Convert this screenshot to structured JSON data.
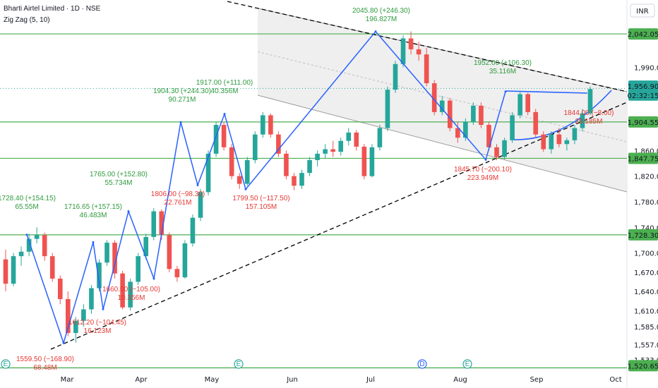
{
  "header": {
    "symbol_line": "Bharti Airtel Limited · 1D · NSE",
    "indicator_line": "Zig Zag (5, 10)",
    "currency": "INR"
  },
  "colors": {
    "up": "#26a69a",
    "down": "#ef5350",
    "zigzag": "#2962ff",
    "support": "#4caf50",
    "channel_fill": "#ececec",
    "trend": "#000000",
    "label_up": "#2e9a3e",
    "label_down": "#e53935"
  },
  "chart_data": {
    "type": "candlestick",
    "title": "Bharti Airtel Limited · 1D · NSE",
    "y_range": [
      1520,
      2095
    ],
    "y_ticks": [
      "1,990.00",
      "1,860.00",
      "1,820.00",
      "1,780.00",
      "1,740.00",
      "1,700.00",
      "1,670.00",
      "1,640.00",
      "1,610.00",
      "1,585.00",
      "1,557.00",
      "1,533.00"
    ],
    "x_ticks": [
      "Mar",
      "Apr",
      "May",
      "Jun",
      "Jul",
      "Aug",
      "Sep",
      "Oct"
    ],
    "price_badges": [
      {
        "value": "2,042.05",
        "type": "level"
      },
      {
        "value": "1,956.90",
        "type": "last"
      },
      {
        "value": "02:32:15",
        "type": "countdown"
      },
      {
        "value": "1,904.55",
        "type": "level"
      },
      {
        "value": "1,847.75",
        "type": "level"
      },
      {
        "value": "1,728.30",
        "type": "level"
      },
      {
        "value": "1,520.65",
        "type": "level"
      }
    ],
    "support_levels": [
      2042.05,
      1904.55,
      1847.75,
      1728.3,
      1520.65
    ],
    "zigzag": [
      {
        "date": "Feb 14",
        "price": 1728.4
      },
      {
        "date": "Feb 28",
        "price": 1559.5
      },
      {
        "date": "Mar 14",
        "price": 1716.65
      },
      {
        "date": "Mar 19",
        "price": 1612.2
      },
      {
        "date": "Mar 28",
        "price": 1765.0
      },
      {
        "date": "Apr 4",
        "price": 1660.0
      },
      {
        "date": "Apr 16",
        "price": 1904.3
      },
      {
        "date": "Apr 24",
        "price": 1806.0
      },
      {
        "date": "May 2",
        "price": 1917.0
      },
      {
        "date": "May 12",
        "price": 1799.5
      },
      {
        "date": "Jun 30",
        "price": 2045.8
      },
      {
        "date": "Aug 6",
        "price": 1845.7
      },
      {
        "date": "Aug 16",
        "price": 1952.0
      }
    ],
    "annotations": [
      {
        "text": "2045.80 (+246.30)",
        "sub": "196.827M",
        "dir": "up"
      },
      {
        "text": "1952.00 (+106.30)",
        "sub": "35.116M",
        "dir": "up"
      },
      {
        "text": "1917.00 (+111.00)",
        "sub": "40.356M",
        "dir": "up"
      },
      {
        "text": "1904.30 (+244.30)",
        "sub": "90.271M",
        "dir": "up"
      },
      {
        "text": "1765.00 (+152.80)",
        "sub": "55.734M",
        "dir": "up"
      },
      {
        "text": "1728.40 (+154.15)",
        "sub": "65.55M",
        "dir": "up"
      },
      {
        "text": "1716.65 (+157.15)",
        "sub": "46.483M",
        "dir": "up"
      },
      {
        "text": "1806.00 (−98.30)",
        "sub": "22.761M",
        "dir": "down"
      },
      {
        "text": "1799.50 (−117.50)",
        "sub": "157.105M",
        "dir": "down"
      },
      {
        "text": "1845.70 (−200.10)",
        "sub": "223.949M",
        "dir": "down"
      },
      {
        "text": "1844.00 (−8.00)",
        "sub": "29.185M",
        "dir": "down"
      },
      {
        "text": "1660.00 (−105.00)",
        "sub": "10.356M",
        "dir": "down"
      },
      {
        "text": "1612.20 (−104.45)",
        "sub": "16.123M",
        "dir": "down"
      },
      {
        "text": "1559.50 (−168.90)",
        "sub": "68.48M",
        "dir": "down"
      }
    ],
    "event_markers": [
      "E",
      "E",
      "D",
      "E"
    ],
    "candles": [
      [
        1690,
        1705,
        1640,
        1652
      ],
      [
        1652,
        1700,
        1648,
        1695
      ],
      [
        1695,
        1710,
        1680,
        1702
      ],
      [
        1702,
        1730,
        1695,
        1722
      ],
      [
        1722,
        1740,
        1715,
        1728
      ],
      [
        1728,
        1732,
        1688,
        1695
      ],
      [
        1695,
        1700,
        1655,
        1660
      ],
      [
        1660,
        1665,
        1620,
        1628
      ],
      [
        1628,
        1640,
        1570,
        1575
      ],
      [
        1575,
        1600,
        1560,
        1594
      ],
      [
        1594,
        1620,
        1585,
        1612
      ],
      [
        1612,
        1650,
        1605,
        1645
      ],
      [
        1645,
        1690,
        1640,
        1685
      ],
      [
        1685,
        1720,
        1680,
        1716
      ],
      [
        1716,
        1720,
        1660,
        1668
      ],
      [
        1668,
        1672,
        1612,
        1615
      ],
      [
        1615,
        1660,
        1610,
        1655
      ],
      [
        1655,
        1700,
        1650,
        1695
      ],
      [
        1695,
        1730,
        1690,
        1725
      ],
      [
        1725,
        1770,
        1720,
        1765
      ],
      [
        1765,
        1768,
        1720,
        1728
      ],
      [
        1728,
        1732,
        1670,
        1675
      ],
      [
        1675,
        1680,
        1655,
        1662
      ],
      [
        1662,
        1720,
        1660,
        1715
      ],
      [
        1715,
        1760,
        1710,
        1755
      ],
      [
        1755,
        1800,
        1750,
        1795
      ],
      [
        1795,
        1860,
        1790,
        1855
      ],
      [
        1855,
        1905,
        1850,
        1900
      ],
      [
        1900,
        1905,
        1860,
        1865
      ],
      [
        1865,
        1870,
        1815,
        1820
      ],
      [
        1820,
        1825,
        1800,
        1808
      ],
      [
        1808,
        1850,
        1805,
        1845
      ],
      [
        1845,
        1890,
        1840,
        1885
      ],
      [
        1885,
        1920,
        1880,
        1915
      ],
      [
        1915,
        1918,
        1880,
        1885
      ],
      [
        1885,
        1890,
        1850,
        1855
      ],
      [
        1855,
        1860,
        1815,
        1820
      ],
      [
        1820,
        1825,
        1798,
        1805
      ],
      [
        1805,
        1830,
        1800,
        1825
      ],
      [
        1825,
        1850,
        1820,
        1845
      ],
      [
        1845,
        1860,
        1835,
        1855
      ],
      [
        1855,
        1870,
        1848,
        1862
      ],
      [
        1862,
        1875,
        1850,
        1858
      ],
      [
        1858,
        1880,
        1852,
        1875
      ],
      [
        1875,
        1895,
        1868,
        1888
      ],
      [
        1888,
        1892,
        1860,
        1866
      ],
      [
        1866,
        1870,
        1815,
        1820
      ],
      [
        1820,
        1870,
        1818,
        1865
      ],
      [
        1865,
        1900,
        1860,
        1895
      ],
      [
        1895,
        1960,
        1890,
        1955
      ],
      [
        1955,
        2000,
        1950,
        1995
      ],
      [
        1995,
        2040,
        1990,
        2035
      ],
      [
        2035,
        2046,
        2010,
        2018
      ],
      [
        2018,
        2030,
        2000,
        2010
      ],
      [
        2010,
        2020,
        1960,
        1965
      ],
      [
        1965,
        1970,
        1915,
        1920
      ],
      [
        1920,
        1945,
        1915,
        1938
      ],
      [
        1938,
        1942,
        1890,
        1895
      ],
      [
        1895,
        1905,
        1872,
        1880
      ],
      [
        1880,
        1910,
        1875,
        1905
      ],
      [
        1905,
        1935,
        1900,
        1930
      ],
      [
        1930,
        1935,
        1895,
        1900
      ],
      [
        1900,
        1905,
        1860,
        1865
      ],
      [
        1865,
        1870,
        1845,
        1850
      ],
      [
        1850,
        1880,
        1846,
        1876
      ],
      [
        1876,
        1920,
        1872,
        1915
      ],
      [
        1915,
        1952,
        1910,
        1948
      ],
      [
        1948,
        1950,
        1915,
        1920
      ],
      [
        1920,
        1925,
        1880,
        1885
      ],
      [
        1885,
        1890,
        1858,
        1862
      ],
      [
        1862,
        1890,
        1855,
        1885
      ],
      [
        1885,
        1895,
        1865,
        1870
      ],
      [
        1870,
        1880,
        1860,
        1876
      ],
      [
        1876,
        1900,
        1870,
        1895
      ],
      [
        1895,
        1925,
        1890,
        1918
      ],
      [
        1918,
        1960,
        1915,
        1956
      ]
    ]
  }
}
